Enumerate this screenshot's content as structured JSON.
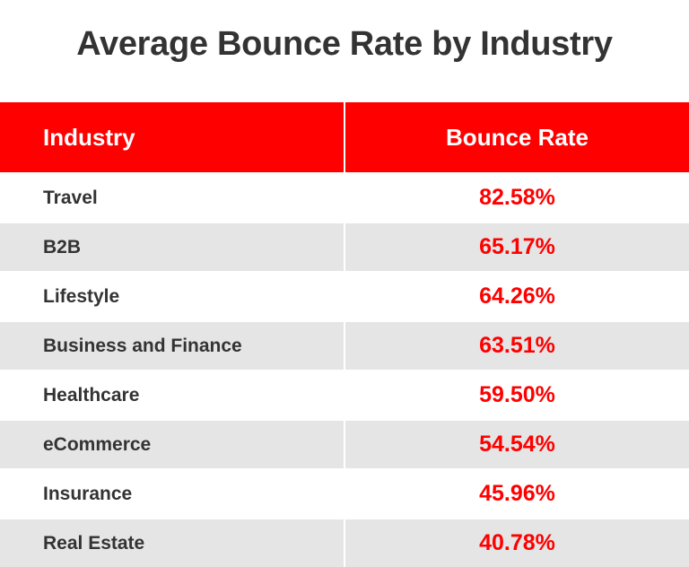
{
  "chart_data": {
    "type": "table",
    "title": "Average Bounce Rate by Industry",
    "columns": [
      "Industry",
      "Bounce Rate"
    ],
    "rows": [
      {
        "industry": "Travel",
        "rate": "82.58%"
      },
      {
        "industry": "B2B",
        "rate": "65.17%"
      },
      {
        "industry": "Lifestyle",
        "rate": "64.26%"
      },
      {
        "industry": "Business and Finance",
        "rate": "63.51%"
      },
      {
        "industry": "Healthcare",
        "rate": "59.50%"
      },
      {
        "industry": "eCommerce",
        "rate": "54.54%"
      },
      {
        "industry": "Insurance",
        "rate": "45.96%"
      },
      {
        "industry": "Real Estate",
        "rate": "40.78%"
      }
    ]
  },
  "colors": {
    "header": "#ff0000",
    "value_text": "#ff0000",
    "alt_row": "#e5e5e5",
    "text": "#333333"
  }
}
